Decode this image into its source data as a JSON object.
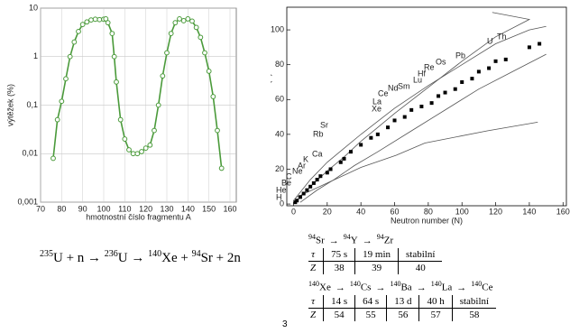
{
  "chart_data": [
    {
      "type": "line",
      "ylabel": "výtěžek (%)",
      "xlabel": "hmotnostní číslo fragmentu A",
      "x": [
        76,
        78,
        80,
        82,
        84,
        86,
        88,
        90,
        92,
        94,
        96,
        98,
        100,
        101,
        102,
        104,
        105,
        106,
        108,
        110,
        112,
        114,
        116,
        118,
        120,
        122,
        124,
        126,
        128,
        130,
        132,
        134,
        136,
        138,
        140,
        142,
        144,
        146,
        148,
        150,
        152,
        154,
        156
      ],
      "series": [
        {
          "color": "#4a9a3a",
          "values": [
            0.008,
            0.05,
            0.12,
            0.35,
            1.0,
            2.0,
            3.3,
            4.6,
            5.2,
            5.7,
            5.9,
            5.8,
            5.9,
            6.0,
            5.0,
            3.0,
            1.0,
            0.3,
            0.05,
            0.02,
            0.012,
            0.01,
            0.01,
            0.011,
            0.013,
            0.015,
            0.03,
            0.1,
            0.4,
            1.2,
            3.0,
            5.0,
            6.0,
            5.5,
            6.0,
            5.4,
            4.0,
            2.5,
            1.2,
            0.5,
            0.15,
            0.03,
            0.005
          ]
        }
      ],
      "xlim": [
        70,
        163
      ],
      "xticks": [
        70,
        80,
        90,
        100,
        110,
        120,
        130,
        140,
        150,
        160
      ],
      "ylim": [
        0.001,
        10
      ],
      "yticks": [
        10,
        1,
        {
          "value": 0.1,
          "label": "0,1"
        },
        {
          "value": 0.01,
          "label": "0,01"
        },
        {
          "value": 0.001,
          "label": "0,001"
        }
      ],
      "log_y": true,
      "grid": true,
      "markers": true
    },
    {
      "type": "scatter",
      "xlabel": "Neutron number (N)",
      "ylabel": "Proton number (Z)",
      "color": "#000",
      "x": [
        1,
        2,
        4,
        6,
        8,
        10,
        12,
        14,
        16,
        20,
        22,
        28,
        30,
        34,
        40,
        46,
        50,
        56,
        60,
        66,
        70,
        76,
        82,
        86,
        90,
        96,
        100,
        106,
        110,
        116,
        120,
        126,
        140,
        146
      ],
      "values": [
        1,
        2,
        4,
        6,
        8,
        10,
        12,
        14,
        16,
        18,
        20,
        24,
        26,
        30,
        34,
        38,
        40,
        44,
        48,
        50,
        54,
        56,
        58,
        62,
        64,
        66,
        70,
        72,
        76,
        78,
        82,
        83,
        90,
        92
      ],
      "lines": [
        {
          "x": [
            0,
            10,
            20,
            30,
            40,
            50,
            60,
            80,
            100,
            120,
            140,
            118
          ],
          "values": [
            0,
            10,
            19,
            27,
            36,
            44,
            52,
            67,
            82,
            96,
            106,
            110
          ]
        },
        {
          "x": [
            2,
            40,
            61,
            78,
            115,
            145
          ],
          "values": [
            4,
            21,
            28,
            35,
            42,
            47
          ]
        },
        {
          "x": [
            0,
            10,
            20,
            30,
            40,
            60,
            80,
            100,
            120,
            140,
            150
          ],
          "values": [
            2,
            14,
            24,
            32,
            40,
            55,
            68,
            80,
            92,
            100,
            102
          ]
        },
        {
          "x": [
            4,
            14,
            24,
            36,
            50,
            70,
            90,
            110,
            130,
            150
          ],
          "values": [
            1,
            8,
            14,
            22,
            30,
            42,
            54,
            66,
            76,
            86
          ]
        }
      ],
      "xlim": [
        -4,
        162
      ],
      "xticks": [
        0,
        20,
        40,
        60,
        80,
        100,
        120,
        140,
        160
      ],
      "ylim": [
        -1,
        113
      ],
      "yticks": [
        0,
        20,
        40,
        60,
        80,
        100
      ],
      "element_labels": [
        "H",
        "He",
        "Be",
        "C",
        "Ne",
        "Ar",
        "K",
        "Ca",
        "Rb",
        "Sr",
        "Xe",
        "La",
        "Ce",
        "Nd",
        "Sm",
        "Lu",
        "Hf",
        "Re",
        "Os",
        "Pb",
        "U",
        "Th"
      ]
    }
  ],
  "equation": [
    "235",
    "U + n → ",
    "236",
    "U → ",
    "140",
    "Xe + ",
    "94",
    "Sr + 2n"
  ],
  "decay_tables": [
    {
      "arrow": "→",
      "nuclides": [
        {
          "mass": "94",
          "symbol": "Sr"
        },
        {
          "mass": "94",
          "symbol": "Y"
        },
        {
          "mass": "94",
          "symbol": "Zr"
        }
      ],
      "rows": [
        [
          "τ",
          "75 s",
          "19 min",
          "stabilní"
        ],
        [
          "Z",
          "38",
          "39",
          "40"
        ]
      ]
    },
    {
      "arrow": "→",
      "nuclides": [
        {
          "mass": "140",
          "symbol": "Xe"
        },
        {
          "mass": "140",
          "symbol": "Cs"
        },
        {
          "mass": "140",
          "symbol": "Ba"
        },
        {
          "mass": "140",
          "symbol": "La"
        },
        {
          "mass": "140",
          "symbol": "Ce"
        }
      ],
      "rows": [
        [
          "τ",
          "14 s",
          "64 s",
          "13 d",
          "40 h",
          "stabilní"
        ],
        [
          "Z",
          "54",
          "55",
          "56",
          "57",
          "58"
        ]
      ]
    }
  ],
  "page_number": "3"
}
